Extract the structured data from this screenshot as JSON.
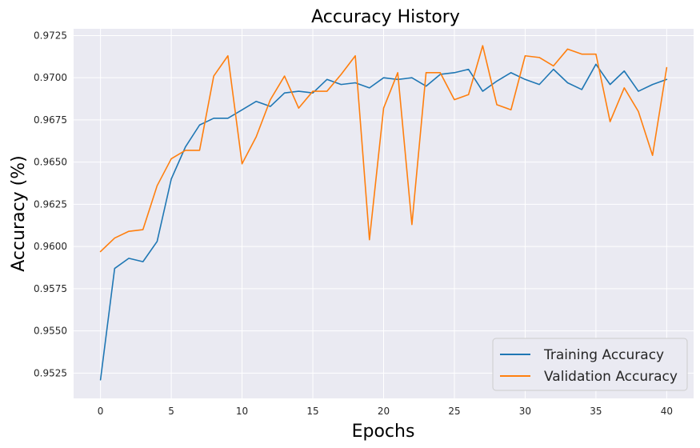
{
  "chart_data": {
    "type": "line",
    "title": "Accuracy History",
    "xlabel": "Epochs",
    "ylabel": "Accuracy (%)",
    "xlim": [
      -1.9,
      41.9
    ],
    "ylim": [
      0.951,
      0.9729
    ],
    "xticks": [
      0,
      5,
      10,
      15,
      20,
      25,
      30,
      35,
      40
    ],
    "yticks": [
      0.9525,
      0.955,
      0.9575,
      0.96,
      0.9625,
      0.965,
      0.9675,
      0.97,
      0.9725
    ],
    "ytick_labels": [
      "0.9525",
      "0.9550",
      "0.9575",
      "0.9600",
      "0.9625",
      "0.9650",
      "0.9675",
      "0.9700",
      "0.9725"
    ],
    "grid": true,
    "legend_position": "lower-right",
    "x": [
      0,
      1,
      2,
      3,
      4,
      5,
      6,
      7,
      8,
      9,
      10,
      11,
      12,
      13,
      14,
      15,
      16,
      17,
      18,
      19,
      20,
      21,
      22,
      23,
      24,
      25,
      26,
      27,
      28,
      29,
      30,
      31,
      32,
      33,
      34,
      35,
      36,
      37,
      38,
      39,
      40
    ],
    "series": [
      {
        "name": "Training Accuracy",
        "color": "#1f77b4",
        "values": [
          0.9521,
          0.9587,
          0.9593,
          0.9591,
          0.9603,
          0.964,
          0.9659,
          0.9672,
          0.9676,
          0.9676,
          0.9681,
          0.9686,
          0.9683,
          0.9691,
          0.9692,
          0.9691,
          0.9699,
          0.9696,
          0.9697,
          0.9694,
          0.97,
          0.9699,
          0.97,
          0.9695,
          0.9702,
          0.9703,
          0.9705,
          0.9692,
          0.9698,
          0.9703,
          0.9699,
          0.9696,
          0.9705,
          0.9697,
          0.9693,
          0.9708,
          0.9696,
          0.9704,
          0.9692,
          0.9696,
          0.9699
        ]
      },
      {
        "name": "Validation Accuracy",
        "color": "#ff7f0e",
        "values": [
          0.9597,
          0.9605,
          0.9609,
          0.961,
          0.9636,
          0.9652,
          0.9657,
          0.9657,
          0.9701,
          0.9713,
          0.9649,
          0.9665,
          0.9687,
          0.9701,
          0.9682,
          0.9692,
          0.9692,
          0.9702,
          0.9713,
          0.9604,
          0.9682,
          0.9703,
          0.9613,
          0.9703,
          0.9703,
          0.9687,
          0.969,
          0.9719,
          0.9684,
          0.9681,
          0.9713,
          0.9712,
          0.9707,
          0.9717,
          0.9714,
          0.9714,
          0.9674,
          0.9694,
          0.968,
          0.9654,
          0.9706
        ]
      }
    ]
  }
}
